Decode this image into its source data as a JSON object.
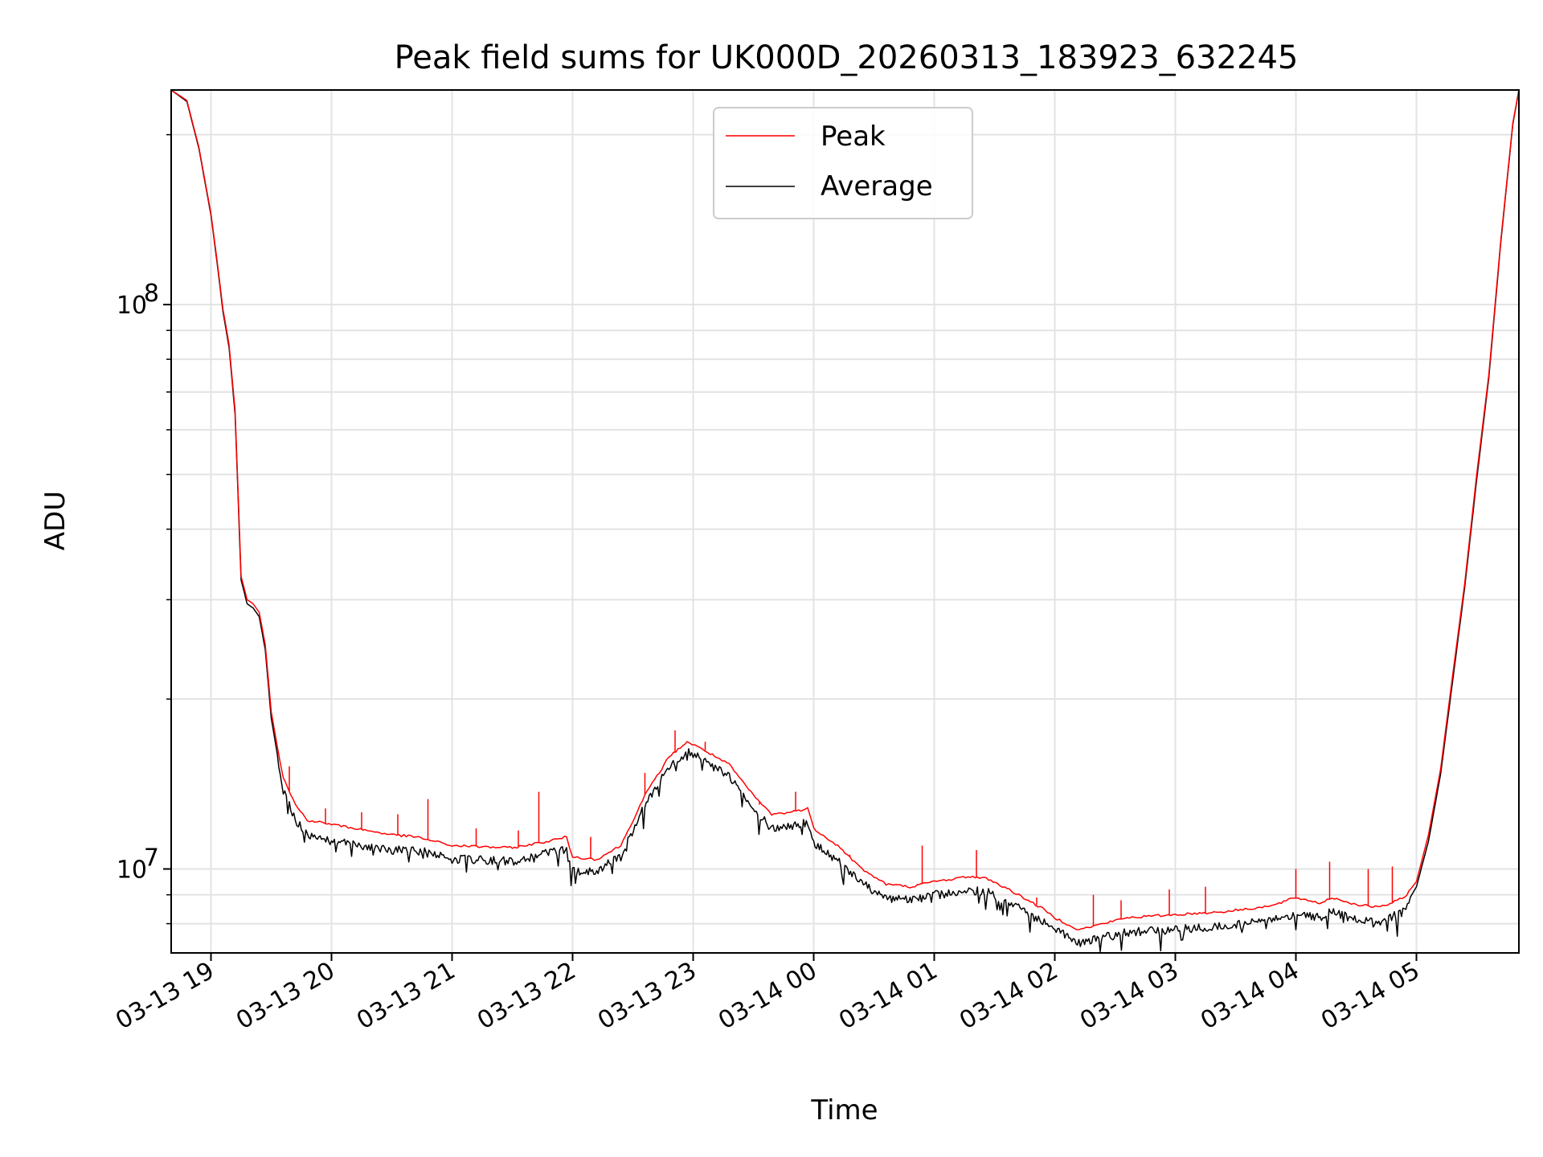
{
  "chart_data": {
    "type": "line",
    "title": "Peak field sums for UK000D_20260313_183923_632245",
    "xlabel": "Time",
    "ylabel": "ADU",
    "yscale": "log",
    "ylim": [
      7100000,
      240000000
    ],
    "xlim_hours": [
      -0.33,
      10.85
    ],
    "x_reference": "03-13 19:00",
    "grid": true,
    "legend_position": "upper center",
    "x_ticks": [
      {
        "hours": 0,
        "label": "03-13 19"
      },
      {
        "hours": 1,
        "label": "03-13 20"
      },
      {
        "hours": 2,
        "label": "03-13 21"
      },
      {
        "hours": 3,
        "label": "03-13 22"
      },
      {
        "hours": 4,
        "label": "03-13 23"
      },
      {
        "hours": 5,
        "label": "03-14 00"
      },
      {
        "hours": 6,
        "label": "03-14 01"
      },
      {
        "hours": 7,
        "label": "03-14 02"
      },
      {
        "hours": 8,
        "label": "03-14 03"
      },
      {
        "hours": 9,
        "label": "03-14 04"
      },
      {
        "hours": 10,
        "label": "03-14 05"
      }
    ],
    "y_major_ticks": [
      {
        "value": 10000000,
        "base": "10",
        "exp": "7"
      },
      {
        "value": 100000000,
        "base": "10",
        "exp": "8"
      }
    ],
    "y_minor_ticks": [
      8000000,
      9000000,
      20000000,
      30000000,
      40000000,
      50000000,
      60000000,
      70000000,
      80000000,
      90000000,
      200000000
    ],
    "series": [
      {
        "name": "Peak",
        "color": "#ff0000",
        "points": [
          [
            -0.33,
            240000000
          ],
          [
            -0.2,
            230000000
          ],
          [
            -0.1,
            190000000
          ],
          [
            0.0,
            145000000
          ],
          [
            0.05,
            120000000
          ],
          [
            0.1,
            98000000
          ],
          [
            0.15,
            85000000
          ],
          [
            0.2,
            65000000
          ],
          [
            0.25,
            33000000
          ],
          [
            0.3,
            30000000
          ],
          [
            0.35,
            29500000
          ],
          [
            0.4,
            28500000
          ],
          [
            0.45,
            25000000
          ],
          [
            0.5,
            19000000
          ],
          [
            0.55,
            16500000
          ],
          [
            0.6,
            14500000
          ],
          [
            0.7,
            13000000
          ],
          [
            0.8,
            12200000
          ],
          [
            1.0,
            12000000
          ],
          [
            1.5,
            11500000
          ],
          [
            1.7,
            11400000
          ],
          [
            2.0,
            11000000
          ],
          [
            2.5,
            10900000
          ],
          [
            2.8,
            11200000
          ],
          [
            2.95,
            11400000
          ],
          [
            3.0,
            10500000
          ],
          [
            3.2,
            10400000
          ],
          [
            3.4,
            11000000
          ],
          [
            3.6,
            13500000
          ],
          [
            3.8,
            15800000
          ],
          [
            3.95,
            16800000
          ],
          [
            4.1,
            16200000
          ],
          [
            4.3,
            15300000
          ],
          [
            4.5,
            13500000
          ],
          [
            4.65,
            12500000
          ],
          [
            4.8,
            12600000
          ],
          [
            4.95,
            12800000
          ],
          [
            5.0,
            11800000
          ],
          [
            5.2,
            11000000
          ],
          [
            5.4,
            10000000
          ],
          [
            5.6,
            9400000
          ],
          [
            5.8,
            9300000
          ],
          [
            6.0,
            9500000
          ],
          [
            6.3,
            9700000
          ],
          [
            6.45,
            9600000
          ],
          [
            6.7,
            9000000
          ],
          [
            6.9,
            8500000
          ],
          [
            7.0,
            8200000
          ],
          [
            7.2,
            7800000
          ],
          [
            7.4,
            8000000
          ],
          [
            7.6,
            8200000
          ],
          [
            8.0,
            8300000
          ],
          [
            8.4,
            8400000
          ],
          [
            8.6,
            8500000
          ],
          [
            8.8,
            8600000
          ],
          [
            9.0,
            8900000
          ],
          [
            9.2,
            8700000
          ],
          [
            9.3,
            8900000
          ],
          [
            9.5,
            8650000
          ],
          [
            9.7,
            8550000
          ],
          [
            9.9,
            8900000
          ],
          [
            10.0,
            9500000
          ],
          [
            10.1,
            11500000
          ],
          [
            10.2,
            15000000
          ],
          [
            10.3,
            22000000
          ],
          [
            10.4,
            32000000
          ],
          [
            10.5,
            50000000
          ],
          [
            10.6,
            75000000
          ],
          [
            10.7,
            130000000
          ],
          [
            10.8,
            210000000
          ],
          [
            10.85,
            240000000
          ]
        ]
      },
      {
        "name": "Average",
        "color": "#000000",
        "points": [
          [
            -0.33,
            240000000
          ],
          [
            -0.2,
            229000000
          ],
          [
            -0.1,
            189000000
          ],
          [
            0.0,
            144000000
          ],
          [
            0.05,
            119000000
          ],
          [
            0.1,
            97000000
          ],
          [
            0.15,
            84000000
          ],
          [
            0.2,
            64000000
          ],
          [
            0.25,
            32500000
          ],
          [
            0.3,
            29500000
          ],
          [
            0.35,
            29000000
          ],
          [
            0.4,
            28000000
          ],
          [
            0.45,
            24500000
          ],
          [
            0.5,
            18500000
          ],
          [
            0.55,
            16000000
          ],
          [
            0.6,
            14000000
          ],
          [
            0.7,
            12400000
          ],
          [
            0.8,
            11700000
          ],
          [
            1.0,
            11400000
          ],
          [
            1.5,
            11000000
          ],
          [
            1.7,
            11000000
          ],
          [
            2.0,
            10600000
          ],
          [
            2.5,
            10500000
          ],
          [
            2.8,
            10900000
          ],
          [
            2.95,
            11000000
          ],
          [
            3.0,
            10100000
          ],
          [
            3.2,
            10100000
          ],
          [
            3.4,
            10700000
          ],
          [
            3.6,
            13200000
          ],
          [
            3.8,
            15400000
          ],
          [
            3.95,
            16400000
          ],
          [
            4.1,
            15800000
          ],
          [
            4.3,
            14800000
          ],
          [
            4.5,
            13000000
          ],
          [
            4.65,
            12000000
          ],
          [
            4.8,
            12100000
          ],
          [
            4.95,
            12300000
          ],
          [
            5.0,
            11300000
          ],
          [
            5.2,
            10500000
          ],
          [
            5.4,
            9600000
          ],
          [
            5.6,
            9050000
          ],
          [
            5.8,
            8950000
          ],
          [
            6.0,
            9150000
          ],
          [
            6.3,
            9350000
          ],
          [
            6.45,
            9250000
          ],
          [
            6.7,
            8700000
          ],
          [
            6.9,
            8200000
          ],
          [
            7.0,
            7950000
          ],
          [
            7.2,
            7500000
          ],
          [
            7.4,
            7700000
          ],
          [
            7.6,
            7850000
          ],
          [
            8.0,
            7950000
          ],
          [
            8.4,
            8050000
          ],
          [
            8.6,
            8150000
          ],
          [
            8.8,
            8250000
          ],
          [
            9.0,
            8500000
          ],
          [
            9.2,
            8350000
          ],
          [
            9.3,
            8550000
          ],
          [
            9.5,
            8300000
          ],
          [
            9.7,
            8200000
          ],
          [
            9.9,
            8550000
          ],
          [
            10.0,
            9300000
          ],
          [
            10.1,
            11200000
          ],
          [
            10.2,
            14700000
          ],
          [
            10.3,
            21500000
          ],
          [
            10.4,
            31500000
          ],
          [
            10.5,
            49000000
          ],
          [
            10.6,
            74000000
          ],
          [
            10.7,
            129000000
          ],
          [
            10.8,
            209000000
          ],
          [
            10.85,
            240000000
          ]
        ]
      }
    ],
    "spikes": [
      {
        "hours": 0.65,
        "peak": 15200000
      },
      {
        "hours": 0.95,
        "peak": 12800000
      },
      {
        "hours": 1.25,
        "peak": 12600000
      },
      {
        "hours": 1.55,
        "peak": 12500000
      },
      {
        "hours": 1.8,
        "peak": 13300000
      },
      {
        "hours": 2.2,
        "peak": 11800000
      },
      {
        "hours": 2.55,
        "peak": 11700000
      },
      {
        "hours": 2.72,
        "peak": 13700000
      },
      {
        "hours": 3.15,
        "peak": 11400000
      },
      {
        "hours": 3.6,
        "peak": 14800000
      },
      {
        "hours": 3.85,
        "peak": 17600000
      },
      {
        "hours": 4.1,
        "peak": 16800000
      },
      {
        "hours": 4.55,
        "peak": 13000000
      },
      {
        "hours": 4.85,
        "peak": 13700000
      },
      {
        "hours": 5.3,
        "peak": 10600000
      },
      {
        "hours": 5.9,
        "peak": 11000000
      },
      {
        "hours": 6.35,
        "peak": 10800000
      },
      {
        "hours": 6.85,
        "peak": 8900000
      },
      {
        "hours": 7.32,
        "peak": 9000000
      },
      {
        "hours": 7.55,
        "peak": 8800000
      },
      {
        "hours": 7.95,
        "peak": 9200000
      },
      {
        "hours": 8.25,
        "peak": 9300000
      },
      {
        "hours": 9.0,
        "peak": 10000000
      },
      {
        "hours": 9.28,
        "peak": 10300000
      },
      {
        "hours": 9.6,
        "peak": 10000000
      },
      {
        "hours": 9.8,
        "peak": 10100000
      }
    ]
  }
}
